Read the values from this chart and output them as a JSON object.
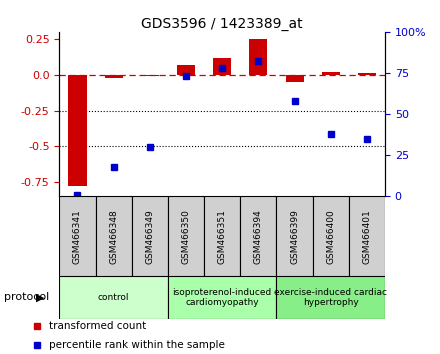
{
  "title": "GDS3596 / 1423389_at",
  "samples": [
    "GSM466341",
    "GSM466348",
    "GSM466349",
    "GSM466350",
    "GSM466351",
    "GSM466394",
    "GSM466399",
    "GSM466400",
    "GSM466401"
  ],
  "red_values": [
    -0.78,
    -0.02,
    -0.01,
    0.07,
    0.12,
    0.25,
    -0.05,
    0.02,
    0.01
  ],
  "blue_values_pct": [
    1,
    18,
    30,
    73,
    78,
    82,
    58,
    38,
    35
  ],
  "ylim_left": [
    -0.85,
    0.3
  ],
  "ylim_right": [
    0,
    100
  ],
  "left_ticks": [
    0.25,
    0.0,
    -0.25,
    -0.5,
    -0.75
  ],
  "right_ticks": [
    100,
    75,
    50,
    25,
    0
  ],
  "groups": [
    {
      "label": "control",
      "start": 0,
      "end": 2,
      "color": "#ccffcc"
    },
    {
      "label": "isoproterenol-induced\ncardiomyopathy",
      "start": 3,
      "end": 5,
      "color": "#aaffaa"
    },
    {
      "label": "exercise-induced cardiac\nhypertrophy",
      "start": 6,
      "end": 8,
      "color": "#88ee88"
    }
  ],
  "bar_width": 0.5,
  "red_color": "#cc0000",
  "blue_color": "#0000cc",
  "legend_items": [
    {
      "label": "transformed count",
      "color": "#cc0000"
    },
    {
      "label": "percentile rank within the sample",
      "color": "#0000cc"
    }
  ],
  "protocol_label": "protocol",
  "bg_color": "#ffffff",
  "dotted_lines": [
    -0.25,
    -0.5
  ],
  "zero_line_color": "#cc0000",
  "sample_box_color": "#d0d0d0"
}
